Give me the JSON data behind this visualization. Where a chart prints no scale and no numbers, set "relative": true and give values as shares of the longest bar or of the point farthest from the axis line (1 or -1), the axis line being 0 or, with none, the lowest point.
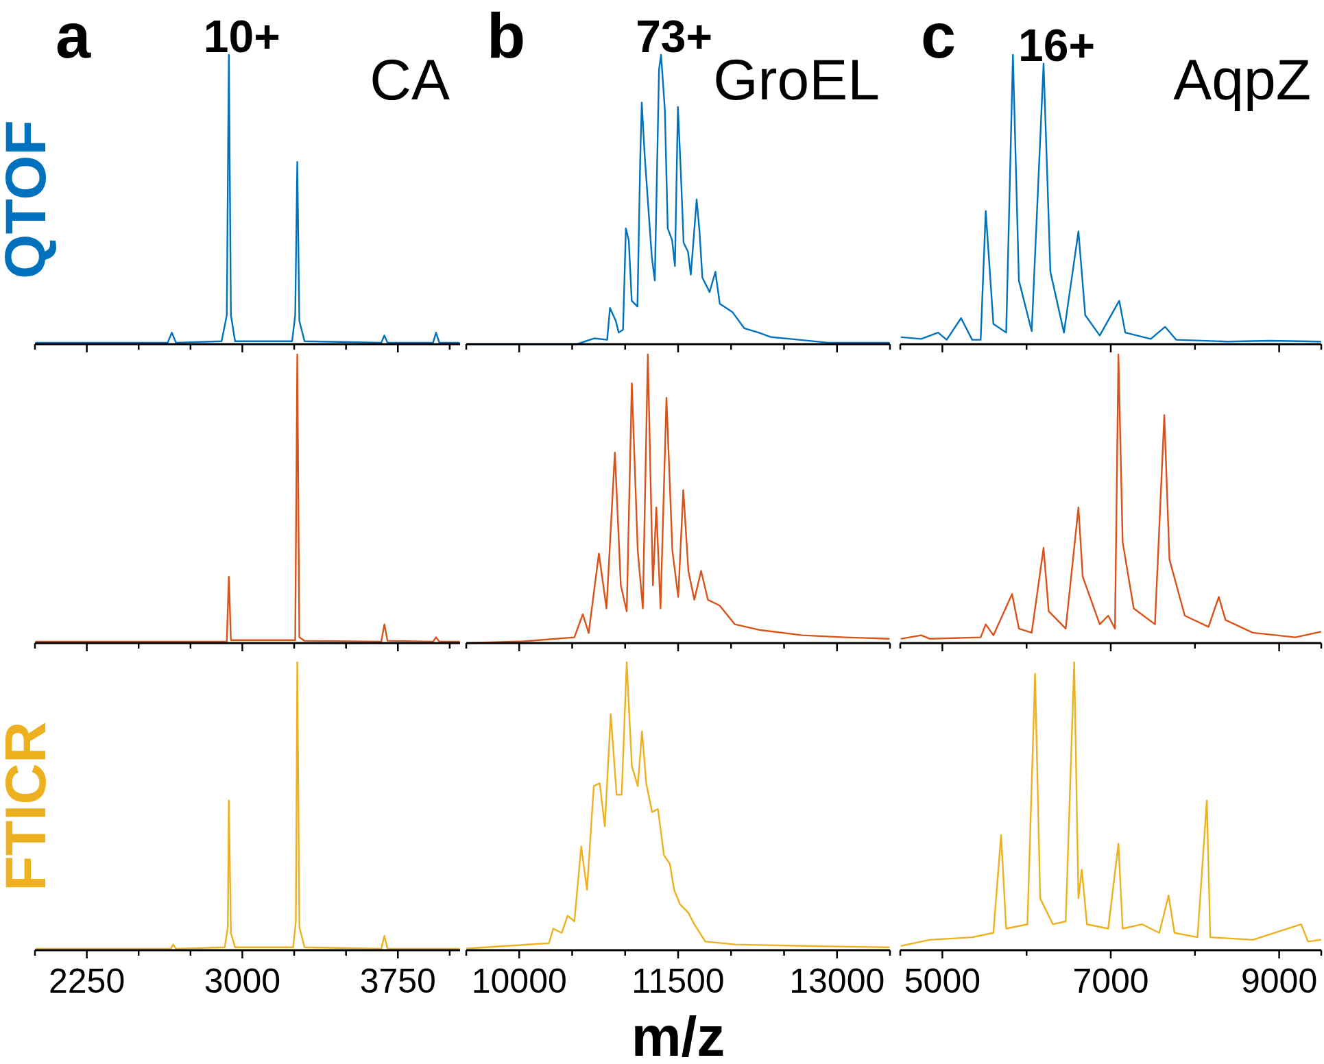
{
  "chart_data": [
    {
      "type": "line",
      "title": "a",
      "ylabel": "QTOF",
      "annotations": [
        {
          "text": "10+",
          "x": 2935,
          "y": 1
        },
        "CA"
      ],
      "relative": true,
      "xlim": [
        2000,
        4050
      ],
      "xticks": [
        {
          "value": 2000,
          "label": null
        },
        2250,
        {
          "value": 2500,
          "label": null
        },
        {
          "value": 2750,
          "label": null
        },
        3000,
        {
          "value": 3250,
          "label": null
        },
        {
          "value": 3500,
          "label": null
        },
        3750,
        {
          "value": 4000,
          "label": null
        }
      ],
      "tick_labels": false,
      "series": [
        {
          "color": "#0072bd",
          "x": [
            2005,
            2640,
            2660,
            2680,
            2900,
            2925,
            2935,
            2945,
            2965,
            3240,
            3255,
            3265,
            3275,
            3300,
            3670,
            3685,
            3700,
            3920,
            3934,
            3950,
            4045
          ],
          "values": [
            0.005,
            0.005,
            0.04,
            0.005,
            0.01,
            0.1,
            1,
            0.1,
            0.01,
            0.01,
            0.1,
            0.63,
            0.08,
            0.01,
            0.005,
            0.03,
            0.005,
            0.005,
            0.04,
            0.005,
            0.005
          ]
        }
      ]
    },
    {
      "type": "line",
      "title": "b",
      "annotations": [
        {
          "text": "73+",
          "x": 11339,
          "y": 1
        },
        "GroEL"
      ],
      "relative": true,
      "xlim": [
        9500,
        13500
      ],
      "xticks": [
        {
          "value": 9500,
          "label": null
        },
        10000,
        {
          "value": 10500,
          "label": null
        },
        {
          "value": 11000,
          "label": null
        },
        11500,
        {
          "value": 12000,
          "label": null
        },
        {
          "value": 12500,
          "label": null
        },
        13000,
        {
          "value": 13500,
          "label": null
        }
      ],
      "tick_labels": false,
      "series": [
        {
          "color": "#0072bd",
          "x": [
            9508,
            10544,
            10707,
            10830,
            10857,
            10912,
            10939,
            10980,
            11007,
            11034,
            11062,
            11116,
            11143,
            11157,
            11184,
            11225,
            11252,
            11280,
            11320,
            11339,
            11375,
            11402,
            11443,
            11470,
            11498,
            11525,
            11552,
            11593,
            11620,
            11675,
            11702,
            11729,
            11797,
            11852,
            11893,
            12015,
            12124,
            12260,
            12370,
            12642,
            12915,
            13490
          ],
          "values": [
            0,
            0,
            0.02,
            0.015,
            0.125,
            0.08,
            0.04,
            0.05,
            0.4,
            0.36,
            0.15,
            0.13,
            0.65,
            0.835,
            0.655,
            0.44,
            0.3,
            0.22,
            0.95,
            1,
            0.81,
            0.4,
            0.36,
            0.27,
            0.82,
            0.6,
            0.35,
            0.32,
            0.24,
            0.5,
            0.39,
            0.23,
            0.18,
            0.25,
            0.14,
            0.11,
            0.055,
            0.04,
            0.025,
            0.015,
            0.005,
            0.005
          ]
        }
      ]
    },
    {
      "type": "line",
      "title": "c",
      "annotations": [
        {
          "text": "16+",
          "x": 6202,
          "y": 0.97
        },
        "AqpZ"
      ],
      "relative": true,
      "xlim": [
        4500,
        9500
      ],
      "xticks": [
        {
          "value": 4500,
          "label": null
        },
        5000,
        {
          "value": 6000,
          "label": null
        },
        7000,
        {
          "value": 8000,
          "label": null
        },
        9000,
        {
          "value": 9500,
          "label": null
        }
      ],
      "tick_labels": false,
      "series": [
        {
          "color": "#0072bd",
          "x": [
            4515,
            4748,
            4950,
            5051,
            5222,
            5354,
            5455,
            5515,
            5606,
            5758,
            5838,
            5909,
            6061,
            6202,
            6283,
            6444,
            6616,
            6697,
            6869,
            7101,
            7172,
            7475,
            7646,
            7778,
            8384,
            8889,
            9490
          ],
          "values": [
            0.024,
            0.018,
            0.04,
            0.015,
            0.09,
            0.015,
            0.015,
            0.46,
            0.07,
            0.04,
            1,
            0.22,
            0.045,
            0.97,
            0.25,
            0.04,
            0.39,
            0.1,
            0.03,
            0.15,
            0.04,
            0.018,
            0.06,
            0.015,
            0.009,
            0.012,
            0.009
          ]
        }
      ]
    },
    {
      "type": "line",
      "relative": true,
      "xlim": [
        2000,
        4050
      ],
      "xticks": [
        {
          "value": 2000,
          "label": null
        },
        2250,
        {
          "value": 2500,
          "label": null
        },
        {
          "value": 2750,
          "label": null
        },
        3000,
        {
          "value": 3250,
          "label": null
        },
        {
          "value": 3500,
          "label": null
        },
        3750,
        {
          "value": 4000,
          "label": null
        }
      ],
      "tick_labels": false,
      "series": [
        {
          "color": "#d95319",
          "x": [
            2005,
            2660,
            2925,
            2935,
            2945,
            3255,
            3265,
            3275,
            3300,
            3670,
            3685,
            3700,
            3920,
            3934,
            3950,
            4045
          ],
          "values": [
            0.005,
            0.005,
            0.005,
            0.23,
            0.01,
            0.01,
            1,
            0.02,
            0.008,
            0.005,
            0.065,
            0.008,
            0.005,
            0.02,
            0.005,
            0.005
          ]
        }
      ]
    },
    {
      "type": "line",
      "relative": true,
      "xlim": [
        9500,
        13500
      ],
      "xticks": [
        {
          "value": 9500,
          "label": null
        },
        10000,
        {
          "value": 10500,
          "label": null
        },
        {
          "value": 11000,
          "label": null
        },
        11500,
        {
          "value": 12000,
          "label": null
        },
        {
          "value": 12500,
          "label": null
        },
        13000,
        {
          "value": 13500,
          "label": null
        }
      ],
      "tick_labels": false,
      "series": [
        {
          "color": "#d95319",
          "x": [
            9508,
            10042,
            10521,
            10600,
            10656,
            10752,
            10824,
            10903,
            10959,
            11015,
            11063,
            11119,
            11167,
            11214,
            11262,
            11294,
            11334,
            11390,
            11446,
            11501,
            11549,
            11597,
            11653,
            11717,
            11781,
            11892,
            12036,
            12275,
            12674,
            13073,
            13490
          ],
          "values": [
            0,
            0.006,
            0.02,
            0.1,
            0.035,
            0.31,
            0.12,
            0.66,
            0.2,
            0.11,
            0.9,
            0.32,
            0.12,
            1,
            0.2,
            0.47,
            0.12,
            0.85,
            0.32,
            0.16,
            0.53,
            0.25,
            0.15,
            0.25,
            0.15,
            0.13,
            0.065,
            0.045,
            0.027,
            0.02,
            0.015
          ]
        }
      ]
    },
    {
      "type": "line",
      "relative": true,
      "xlim": [
        4500,
        9500
      ],
      "xticks": [
        {
          "value": 4500,
          "label": null
        },
        5000,
        {
          "value": 6000,
          "label": null
        },
        7000,
        {
          "value": 8000,
          "label": null
        },
        9000,
        {
          "value": 9500,
          "label": null
        }
      ],
      "tick_labels": false,
      "series": [
        {
          "color": "#d95319",
          "x": [
            4515,
            4748,
            4848,
            5455,
            5515,
            5606,
            5828,
            5909,
            6061,
            6202,
            6263,
            6465,
            6616,
            6667,
            6869,
            6970,
            7050,
            7091,
            7141,
            7273,
            7525,
            7636,
            7697,
            7879,
            8161,
            8283,
            8363,
            8687,
            9192,
            9490
          ],
          "values": [
            0.015,
            0.027,
            0.015,
            0.02,
            0.065,
            0.027,
            0.17,
            0.05,
            0.036,
            0.33,
            0.11,
            0.05,
            0.47,
            0.23,
            0.065,
            0.095,
            0.05,
            1,
            0.35,
            0.12,
            0.065,
            0.79,
            0.29,
            0.095,
            0.056,
            0.16,
            0.08,
            0.036,
            0.02,
            0.039
          ]
        }
      ]
    },
    {
      "type": "line",
      "ylabel": "FTICR",
      "relative": true,
      "xlim": [
        2000,
        4050
      ],
      "xticks": [
        {
          "value": 2000,
          "label": null
        },
        2250,
        {
          "value": 2500,
          "label": null
        },
        {
          "value": 2750,
          "label": null
        },
        3000,
        {
          "value": 3250,
          "label": null
        },
        {
          "value": 3500,
          "label": null
        },
        3750,
        {
          "value": 4000,
          "label": null
        }
      ],
      "tick_labels": "x",
      "series": [
        {
          "color": "#edb120",
          "x": [
            2005,
            2655,
            2666,
            2680,
            2915,
            2930,
            2935,
            2945,
            2965,
            3245,
            3258,
            3265,
            3275,
            3300,
            3670,
            3685,
            3700,
            4045
          ],
          "values": [
            0.005,
            0.005,
            0.02,
            0.005,
            0.01,
            0.08,
            0.52,
            0.06,
            0.01,
            0.01,
            0.1,
            1,
            0.08,
            0.01,
            0.005,
            0.05,
            0.005,
            0.005
          ]
        }
      ]
    },
    {
      "type": "line",
      "xlabel": "m/z",
      "relative": true,
      "xlim": [
        9500,
        13500
      ],
      "xticks": [
        {
          "value": 9500,
          "label": null
        },
        10000,
        {
          "value": 10500,
          "label": null
        },
        {
          "value": 11000,
          "label": null
        },
        11500,
        {
          "value": 12000,
          "label": null
        },
        {
          "value": 12500,
          "label": null
        },
        13000,
        {
          "value": 13500,
          "label": null
        }
      ],
      "tick_labels": "x",
      "series": [
        {
          "color": "#edb120",
          "x": [
            9508,
            9883,
            10281,
            10321,
            10401,
            10457,
            10521,
            10585,
            10640,
            10704,
            10760,
            10808,
            10864,
            10919,
            10967,
            11015,
            11063,
            11119,
            11159,
            11199,
            11254,
            11310,
            11366,
            11422,
            11462,
            11517,
            11597,
            11653,
            11757,
            12036,
            12674,
            13490
          ],
          "values": [
            0.006,
            0.015,
            0.024,
            0.075,
            0.06,
            0.12,
            0.1,
            0.36,
            0.21,
            0.57,
            0.58,
            0.43,
            0.82,
            0.54,
            0.54,
            1,
            0.64,
            0.57,
            0.76,
            0.58,
            0.48,
            0.49,
            0.33,
            0.3,
            0.21,
            0.16,
            0.13,
            0.09,
            0.03,
            0.02,
            0.015,
            0.01
          ]
        }
      ]
    },
    {
      "type": "line",
      "relative": true,
      "xlim": [
        4500,
        9500
      ],
      "xticks": [
        {
          "value": 4500,
          "label": null
        },
        5000,
        {
          "value": 6000,
          "label": null
        },
        7000,
        {
          "value": 8000,
          "label": null
        },
        9000,
        {
          "value": 9500,
          "label": null
        }
      ],
      "tick_labels": "x",
      "series": [
        {
          "color": "#edb120",
          "x": [
            4515,
            4848,
            5354,
            5606,
            5697,
            5758,
            6010,
            6101,
            6162,
            6313,
            6465,
            6566,
            6616,
            6656,
            6717,
            6970,
            7091,
            7141,
            7374,
            7576,
            7687,
            7757,
            8030,
            8141,
            8182,
            8687,
            9262,
            9343,
            9490
          ],
          "values": [
            0.015,
            0.036,
            0.045,
            0.06,
            0.4,
            0.075,
            0.09,
            0.96,
            0.18,
            0.09,
            0.1,
            1,
            0.18,
            0.28,
            0.09,
            0.075,
            0.37,
            0.075,
            0.09,
            0.06,
            0.19,
            0.06,
            0.045,
            0.52,
            0.045,
            0.036,
            0.09,
            0.03,
            0.036
          ]
        }
      ]
    }
  ]
}
